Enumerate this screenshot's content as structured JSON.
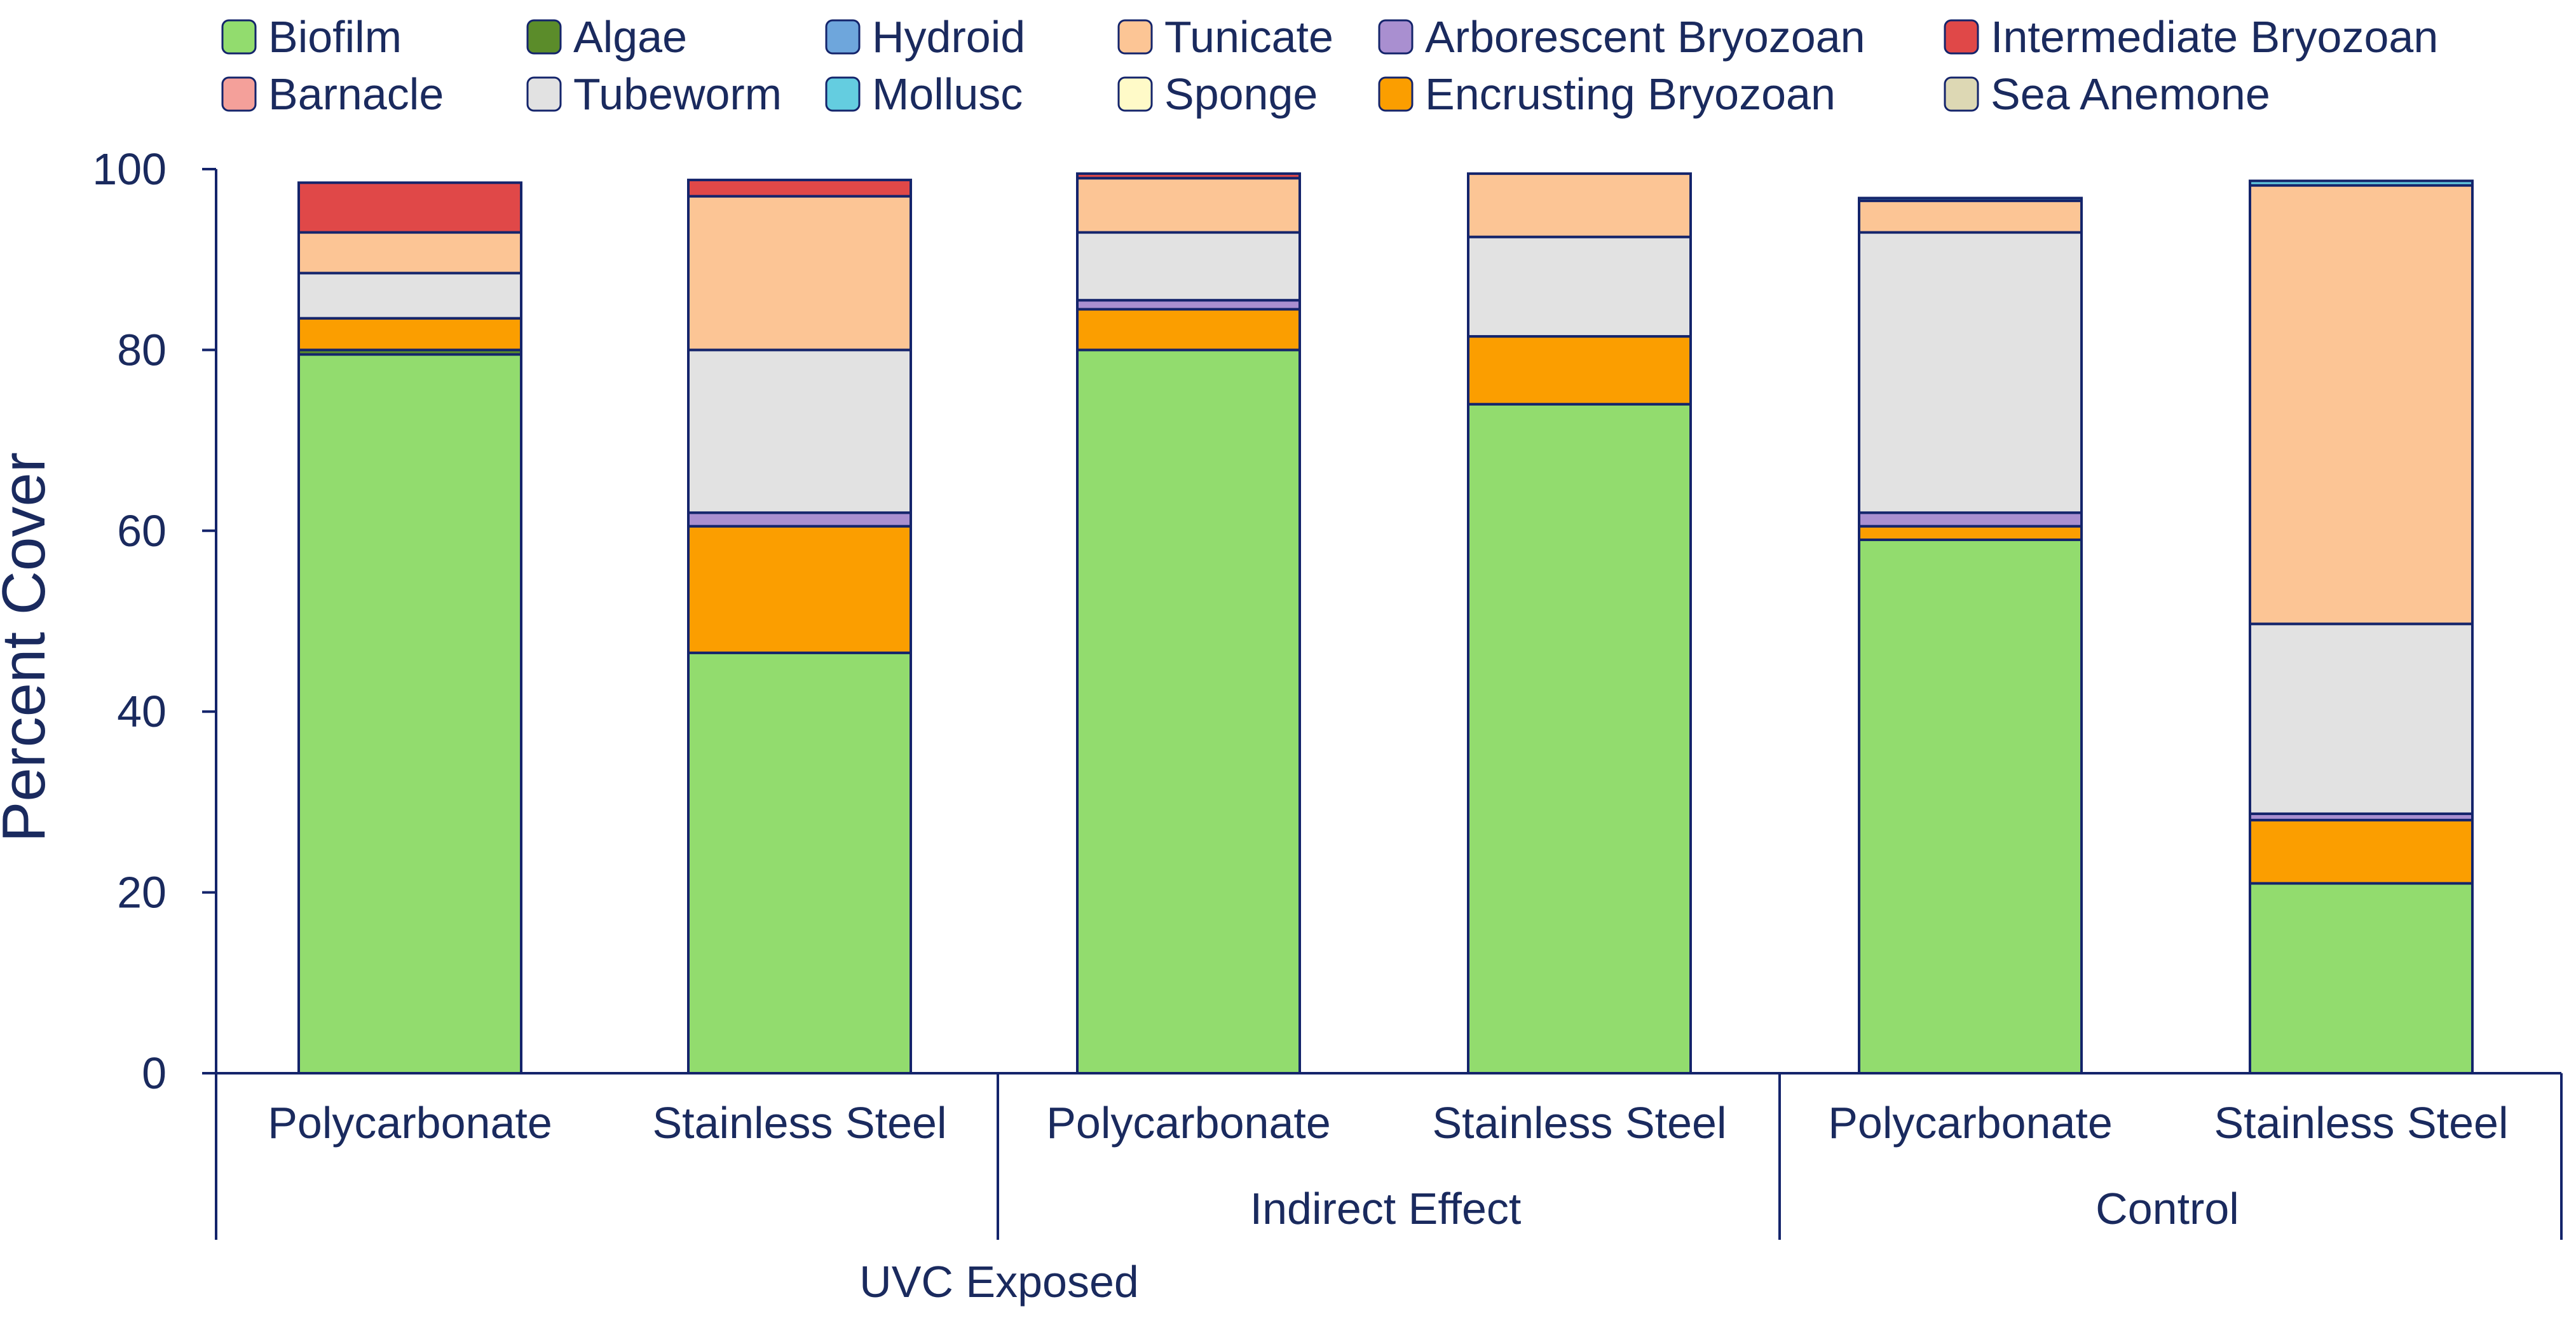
{
  "chart_data": {
    "type": "bar",
    "stacked": true,
    "ylabel": "Percent Cover",
    "xlabel": "",
    "ylim": [
      0,
      100
    ],
    "yticks": [
      0,
      20,
      40,
      60,
      80,
      100
    ],
    "grid": false,
    "legend_position": "top",
    "groups": [
      {
        "name": "UVC Exposed",
        "bars": [
          "Polycarbonate",
          "Stainless Steel"
        ]
      },
      {
        "name": "Indirect Effect",
        "bars": [
          "Polycarbonate",
          "Stainless Steel"
        ]
      },
      {
        "name": "Control",
        "bars": [
          "Polycarbonate",
          "Stainless Steel"
        ]
      }
    ],
    "categories": [
      "Polycarbonate",
      "Stainless Steel",
      "Polycarbonate",
      "Stainless Steel",
      "Polycarbonate",
      "Stainless Steel"
    ],
    "series": [
      {
        "name": "Biofilm",
        "color": "#92dc6e",
        "values": [
          79.5,
          46.5,
          80.0,
          74.0,
          59.0,
          21.0
        ]
      },
      {
        "name": "Barnacle",
        "color": "#f4a09a",
        "values": [
          0.0,
          0.0,
          0.0,
          0.0,
          0.0,
          0.0
        ]
      },
      {
        "name": "Algae",
        "color": "#5b8c2a",
        "values": [
          0.5,
          0.0,
          0.0,
          0.0,
          0.0,
          0.0
        ]
      },
      {
        "name": "Tubeworm",
        "color": "#e2e2e2",
        "values": [
          5.0,
          18.0,
          7.5,
          11.0,
          31.0,
          21.0
        ]
      },
      {
        "name": "Hydroid",
        "color": "#6ea6dc",
        "values": [
          0.0,
          0.0,
          0.0,
          0.0,
          0.0,
          0.0
        ]
      },
      {
        "name": "Mollusc",
        "color": "#64cde0",
        "values": [
          0.0,
          0.0,
          0.0,
          0.0,
          0.3,
          0.5
        ]
      },
      {
        "name": "Tunicate",
        "color": "#fcc595",
        "values": [
          4.5,
          17.0,
          6.0,
          7.0,
          3.5,
          48.5
        ]
      },
      {
        "name": "Sponge",
        "color": "#fffac8",
        "values": [
          0.0,
          0.0,
          0.0,
          0.0,
          0.0,
          0.0
        ]
      },
      {
        "name": "Arborescent Bryozoan",
        "color": "#a98fd0",
        "values": [
          0.0,
          1.5,
          1.0,
          0.0,
          1.5,
          0.7
        ]
      },
      {
        "name": "Encrusting Bryozoan",
        "color": "#fb9e00",
        "values": [
          3.5,
          14.0,
          4.5,
          7.5,
          1.5,
          7.0
        ]
      },
      {
        "name": "Intermediate Bryozoan",
        "color": "#e04848",
        "values": [
          5.5,
          1.8,
          0.5,
          0.0,
          0.0,
          0.0
        ]
      },
      {
        "name": "Sea Anemone",
        "color": "#ddd8b4",
        "values": [
          0.0,
          0.0,
          0.0,
          0.0,
          0.0,
          0.0
        ]
      }
    ],
    "stack_order": [
      "Biofilm",
      "Algae",
      "Encrusting Bryozoan",
      "Arborescent Bryozoan",
      "Barnacle",
      "Tubeworm",
      "Tunicate",
      "Sponge",
      "Intermediate Bryozoan",
      "Mollusc",
      "Hydroid",
      "Sea Anemone"
    ],
    "legend_order": [
      "Biofilm",
      "Algae",
      "Hydroid",
      "Tunicate",
      "Arborescent Bryozoan",
      "Intermediate Bryozoan",
      "Barnacle",
      "Tubeworm",
      "Mollusc",
      "Sponge",
      "Encrusting Bryozoan",
      "Sea Anemone"
    ],
    "outline_color": "#14246b",
    "text_color": "#1a2a5e"
  }
}
